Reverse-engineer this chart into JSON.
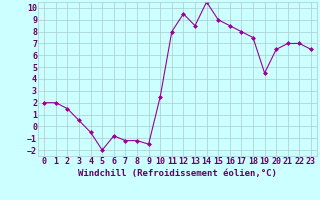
{
  "x": [
    0,
    1,
    2,
    3,
    4,
    5,
    6,
    7,
    8,
    9,
    10,
    11,
    12,
    13,
    14,
    15,
    16,
    17,
    18,
    19,
    20,
    21,
    22,
    23
  ],
  "y": [
    2,
    2,
    1.5,
    0.5,
    -0.5,
    -2,
    -0.8,
    -1.2,
    -1.2,
    -1.5,
    2.5,
    8,
    9.5,
    8.5,
    10.5,
    9,
    8.5,
    8,
    7.5,
    4.5,
    6.5,
    7,
    7,
    6.5
  ],
  "line_color": "#990099",
  "marker": "D",
  "marker_size": 2,
  "bg_color": "#ccffff",
  "grid_color": "#aacccc",
  "xlabel": "Windchill (Refroidissement éolien,°C)",
  "xlabel_color": "#660066",
  "xlabel_fontsize": 6.5,
  "ylim": [
    -2.5,
    10.5
  ],
  "xlim": [
    -0.5,
    23.5
  ],
  "yticks": [
    -2,
    -1,
    0,
    1,
    2,
    3,
    4,
    5,
    6,
    7,
    8,
    9,
    10
  ],
  "xticks": [
    0,
    1,
    2,
    3,
    4,
    5,
    6,
    7,
    8,
    9,
    10,
    11,
    12,
    13,
    14,
    15,
    16,
    17,
    18,
    19,
    20,
    21,
    22,
    23
  ],
  "tick_fontsize": 6,
  "tick_color": "#660066"
}
